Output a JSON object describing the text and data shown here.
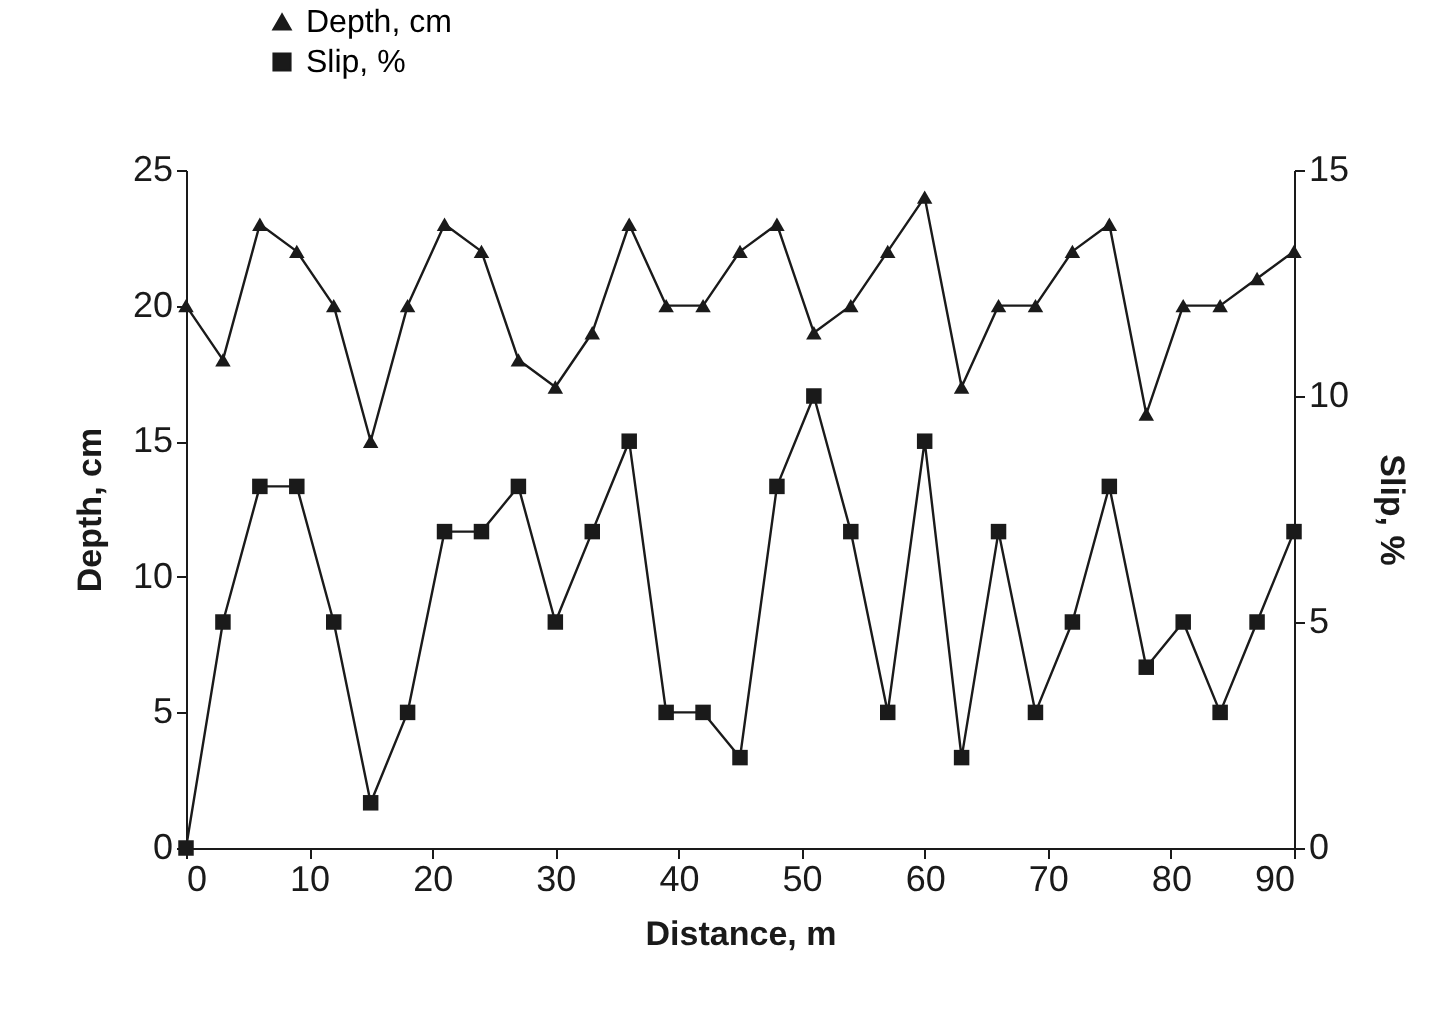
{
  "chart_data": {
    "type": "line",
    "xlabel": "Distance, m",
    "ylabel": "Depth, cm",
    "y2label": "Slip, %",
    "x": [
      0,
      3,
      6,
      9,
      12,
      15,
      18,
      21,
      24,
      27,
      30,
      33,
      36,
      39,
      42,
      45,
      48,
      51,
      54,
      57,
      60,
      63,
      66,
      69,
      72,
      75,
      78,
      81,
      84,
      87,
      90
    ],
    "series": [
      {
        "name": "Depth, cm",
        "color": "#1a1a1a",
        "marker": "triangle",
        "values": [
          20,
          18,
          23,
          22,
          20,
          15,
          20,
          23,
          22,
          18,
          17,
          19,
          23,
          20,
          20,
          22,
          23,
          19,
          20,
          22,
          24,
          17,
          20,
          20,
          22,
          23,
          16,
          20,
          20,
          21,
          22
        ]
      },
      {
        "name": "Slip, %",
        "color": "#1a1a1a",
        "marker": "square",
        "axis": "y2",
        "values": [
          0,
          5,
          8,
          8,
          5,
          1,
          3,
          7,
          7,
          8,
          5,
          7,
          9,
          3,
          3,
          2,
          8,
          10,
          7,
          3,
          9,
          2,
          7,
          3,
          5,
          8,
          4,
          5,
          3,
          5,
          7
        ]
      }
    ],
    "xlim": [
      0,
      90
    ],
    "xticks": [
      0,
      10,
      20,
      30,
      40,
      50,
      60,
      70,
      80,
      90
    ],
    "ylim": [
      0,
      25
    ],
    "yticks": [
      0,
      5,
      10,
      15,
      20,
      25
    ],
    "y2lim": [
      0,
      15
    ],
    "y2ticks": [
      0,
      5,
      10,
      15
    ],
    "grid": false,
    "legend": "top left",
    "line_style": "solid"
  }
}
